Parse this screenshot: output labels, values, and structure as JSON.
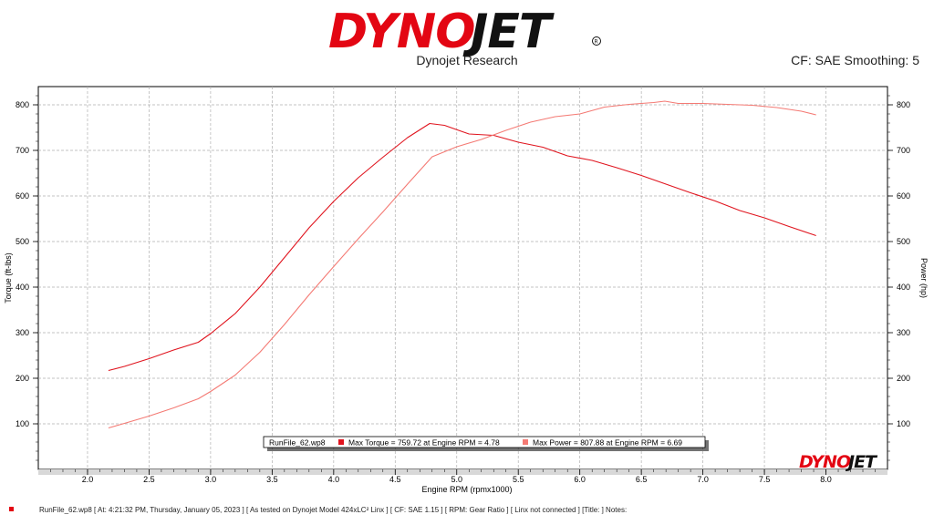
{
  "header": {
    "brand": "DYNOJET",
    "subtitle": "Dynojet Research",
    "cf_info": "CF: SAE Smoothing: 5"
  },
  "colors": {
    "torque": "#e0141e",
    "power": "#f47a74",
    "brand": "#e30613",
    "grid": "#b0b0b0"
  },
  "legend": {
    "file": "RunFile_62.wp8",
    "torque": "Max Torque = 759.72 at Engine RPM = 4.78",
    "power": "Max Power = 807.88 at Engine RPM = 6.69"
  },
  "footer": "RunFile_62.wp8  [  At:  4:21:32  PM,  Thursday,  January  05,  2023  ]  [  As  tested  on  Dynojet  Model  424xLC²  Linx  ]  [  CF:  SAE  1.15  ]  [  RPM:  Gear  Ratio  ]  [  Linx  not  connected  ]  [Title:  ]   Notes:",
  "chart_data": {
    "type": "line",
    "xlabel": "Engine RPM (rpmx1000)",
    "ylabel": "Torque (ft-lbs)",
    "y2label": "Power (hp)",
    "xlim": [
      1.6,
      8.5
    ],
    "ylim": [
      0,
      840
    ],
    "x_ticks": [
      "2.0",
      "2.5",
      "3.0",
      "3.5",
      "4.0",
      "4.5",
      "5.0",
      "5.5",
      "6.0",
      "6.5",
      "7.0",
      "7.5",
      "8.0"
    ],
    "y_ticks": [
      "100",
      "200",
      "300",
      "400",
      "500",
      "600",
      "700",
      "800"
    ],
    "grid": true,
    "legend_position": "bottom-center",
    "series": [
      {
        "name": "Max Torque",
        "x": [
          2.17,
          2.3,
          2.5,
          2.7,
          2.9,
          3.0,
          3.2,
          3.4,
          3.6,
          3.8,
          4.0,
          4.2,
          4.4,
          4.6,
          4.78,
          4.9,
          5.1,
          5.3,
          5.5,
          5.7,
          5.9,
          6.1,
          6.3,
          6.5,
          6.7,
          6.9,
          7.1,
          7.3,
          7.5,
          7.7,
          7.92
        ],
        "y": [
          217,
          226,
          243,
          262,
          279,
          298,
          342,
          400,
          465,
          530,
          588,
          640,
          685,
          728,
          759,
          755,
          736,
          733,
          718,
          707,
          688,
          678,
          662,
          645,
          626,
          607,
          589,
          568,
          552,
          533,
          513
        ]
      },
      {
        "name": "Max Power",
        "x": [
          2.17,
          2.3,
          2.5,
          2.7,
          2.9,
          3.0,
          3.2,
          3.4,
          3.6,
          3.8,
          4.0,
          4.2,
          4.4,
          4.6,
          4.8,
          5.0,
          5.2,
          5.4,
          5.6,
          5.8,
          6.0,
          6.2,
          6.4,
          6.6,
          6.69,
          6.8,
          7.0,
          7.2,
          7.4,
          7.6,
          7.8,
          7.92
        ],
        "y": [
          91,
          101,
          117,
          135,
          155,
          171,
          207,
          257,
          318,
          383,
          445,
          506,
          565,
          626,
          686,
          708,
          724,
          744,
          762,
          774,
          780,
          795,
          801,
          805,
          808,
          803,
          803,
          801,
          799,
          794,
          786,
          778
        ]
      }
    ]
  }
}
